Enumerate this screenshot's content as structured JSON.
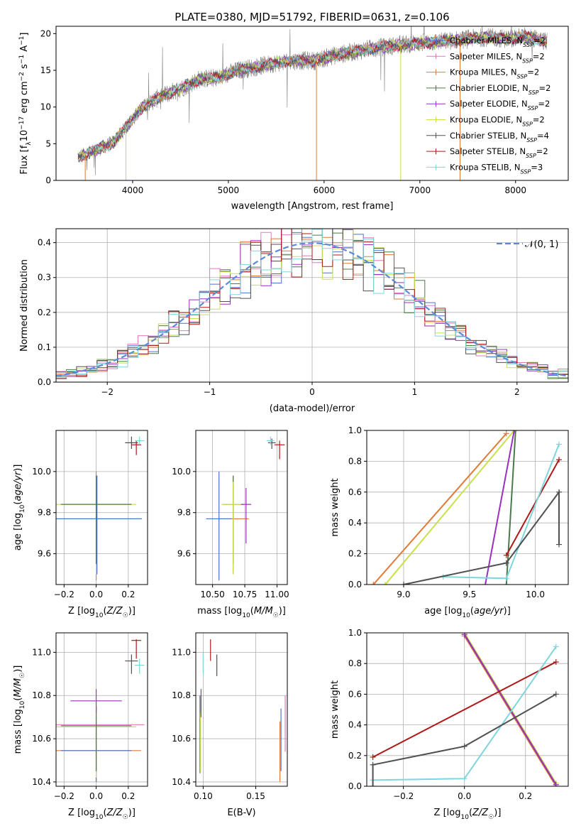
{
  "figure": {
    "title": "PLATE=0380, MJD=51792, FIBERID=0631, z=0.106"
  },
  "legend": {
    "entries": [
      {
        "label": "Chabrier MILES, N",
        "sub": "SSP",
        "suffix": "=2",
        "color": "#4c72d0"
      },
      {
        "label": "Salpeter MILES, N",
        "sub": "SSP",
        "suffix": "=2",
        "color": "#e377c2"
      },
      {
        "label": "Kroupa MILES, N",
        "sub": "SSP",
        "suffix": "=2",
        "color": "#e07b39"
      },
      {
        "label": "Chabrier ELODIE, N",
        "sub": "SSP",
        "suffix": "=2",
        "color": "#4a7a4a"
      },
      {
        "label": "Salpeter ELODIE, N",
        "sub": "SSP",
        "suffix": "=2",
        "color": "#9b30c0"
      },
      {
        "label": "Kroupa ELODIE, N",
        "sub": "SSP",
        "suffix": "=2",
        "color": "#c8e04a"
      },
      {
        "label": "Chabrier STELIB, N",
        "sub": "SSP",
        "suffix": "=4",
        "color": "#505050"
      },
      {
        "label": "Salpeter STELIB, N",
        "sub": "SSP",
        "suffix": "=2",
        "color": "#b01818"
      },
      {
        "label": "Kroupa STELIB, N",
        "sub": "SSP",
        "suffix": "=3",
        "color": "#7fd6dc"
      }
    ]
  },
  "chart_data": [
    {
      "id": "spectrum",
      "type": "line",
      "xlabel": "wavelength [Angstrom, rest frame]",
      "ylabel": "Flux [f_λ 10^-17 erg cm^-2 s^-1 A^-1]",
      "xlim": [
        3200,
        8550
      ],
      "ylim": [
        0,
        21
      ],
      "xticks": [
        "4000",
        "5000",
        "6000",
        "7000",
        "8000"
      ],
      "yticks": [
        "0",
        "5",
        "10",
        "15",
        "20"
      ],
      "grid": false,
      "data_color": "#808080",
      "continuum": {
        "x": [
          3430,
          3600,
          3800,
          3950,
          4100,
          4300,
          4500,
          4700,
          4900,
          5100,
          5300,
          5500,
          5700,
          5900,
          6100,
          6300,
          6500,
          6700,
          6900,
          7100,
          7300,
          7500,
          7700,
          7900,
          8100,
          8300
        ],
        "y": [
          3.2,
          4.0,
          5.2,
          7.5,
          10.0,
          11.5,
          12.5,
          13.8,
          14.0,
          15.0,
          15.5,
          16.0,
          16.3,
          16.3,
          17.0,
          17.5,
          18.0,
          18.3,
          18.6,
          18.8,
          19.0,
          19.3,
          19.5,
          19.3,
          19.6,
          19.0
        ]
      }
    },
    {
      "id": "residual-histogram",
      "type": "line",
      "xlabel": "(data-model)/error",
      "ylabel": "Normed distribution",
      "xlim": [
        -2.5,
        2.5
      ],
      "ylim": [
        0,
        0.44
      ],
      "xticks": [
        "−2",
        "−1",
        "0",
        "1",
        "2"
      ],
      "yticks": [
        "0.0",
        "0.1",
        "0.2",
        "0.3",
        "0.4"
      ],
      "grid": true,
      "reference": {
        "label": "𝒩(0, 1)",
        "mean": 0,
        "sigma": 1,
        "color": "#5b8bd8"
      },
      "hist_bins": {
        "start": -2.5,
        "width": 0.1
      }
    },
    {
      "id": "age-vs-metallicity",
      "type": "scatter",
      "xlabel": "Z [log10(Z/Z☉)]",
      "ylabel": "age [log10(age/yr)]",
      "xlim": [
        -0.25,
        0.32
      ],
      "ylim": [
        9.45,
        10.2
      ],
      "xticks": [
        "−0.2",
        "0.0",
        "0.2"
      ],
      "yticks": [
        "9.6",
        "9.8",
        "10.0"
      ],
      "grid": true,
      "points": [
        {
          "x": 0.0,
          "y": 9.77,
          "xerr": 0.28,
          "ylo": 9.47,
          "yhi": 10.0,
          "color": "#e07b39"
        },
        {
          "x": 0.0,
          "y": 9.84,
          "xerr": 0.25,
          "ylo": 9.5,
          "yhi": 9.95,
          "color": "#c8e04a"
        },
        {
          "x": 0.005,
          "y": 9.77,
          "xerr": 0.28,
          "ylo": 9.5,
          "yhi": 9.98,
          "color": "#4c72d0"
        },
        {
          "x": 0.0,
          "y": 9.84,
          "xerr": 0.22,
          "ylo": 9.55,
          "yhi": 9.98,
          "color": "#4a7a4a"
        },
        {
          "x": 0.22,
          "y": 10.14,
          "xerr": 0.04,
          "ylo": 10.11,
          "yhi": 10.17,
          "color": "#505050"
        },
        {
          "x": 0.25,
          "y": 10.13,
          "xerr": 0.03,
          "ylo": 10.08,
          "yhi": 10.15,
          "color": "#b01818"
        },
        {
          "x": 0.27,
          "y": 10.15,
          "xerr": 0.03,
          "ylo": 10.13,
          "yhi": 10.17,
          "color": "#7fd6dc"
        }
      ]
    },
    {
      "id": "age-vs-mass",
      "type": "scatter",
      "xlabel": "mass [log10(M/M☉)]",
      "ylabel": "",
      "xlim": [
        10.37,
        11.08
      ],
      "ylim": [
        9.45,
        10.2
      ],
      "xticks": [
        "10.50",
        "10.75",
        "11.00"
      ],
      "yticks": [
        "9.6",
        "9.8",
        "10.0"
      ],
      "grid": true,
      "points": [
        {
          "x": 10.66,
          "y": 9.77,
          "xerr": 0.12,
          "ylo": 9.5,
          "yhi": 9.98,
          "color": "#e07b39"
        },
        {
          "x": 10.55,
          "y": 9.77,
          "xerr": 0.1,
          "ylo": 9.47,
          "yhi": 10.0,
          "color": "#4c72d0"
        },
        {
          "x": 10.66,
          "y": 9.84,
          "xerr": 0.08,
          "ylo": 9.55,
          "yhi": 9.98,
          "color": "#4a7a4a"
        },
        {
          "x": 10.66,
          "y": 9.84,
          "xerr": 0.09,
          "ylo": 9.5,
          "yhi": 9.95,
          "color": "#c8e04a"
        },
        {
          "x": 10.76,
          "y": 9.84,
          "xerr": 0.04,
          "ylo": 9.65,
          "yhi": 9.92,
          "color": "#9b30c0"
        },
        {
          "x": 10.96,
          "y": 10.14,
          "xerr": 0.03,
          "ylo": 10.11,
          "yhi": 10.16,
          "color": "#505050"
        },
        {
          "x": 11.02,
          "y": 10.13,
          "xerr": 0.04,
          "ylo": 10.06,
          "yhi": 10.15,
          "color": "#b01818"
        },
        {
          "x": 10.95,
          "y": 10.15,
          "xerr": 0.03,
          "ylo": 10.13,
          "yhi": 10.17,
          "color": "#7fd6dc"
        }
      ]
    },
    {
      "id": "mass-weight-vs-age",
      "type": "line",
      "xlabel": "age [log10(age/yr)]",
      "ylabel": "mass weight",
      "xlim": [
        8.72,
        10.25
      ],
      "ylim": [
        0,
        1
      ],
      "xticks": [
        "9.0",
        "9.5",
        "10.0"
      ],
      "yticks": [
        "0.0",
        "0.2",
        "0.4",
        "0.6",
        "0.8",
        "1.0"
      ],
      "grid": true,
      "series": [
        {
          "color": "#e07b39",
          "x": [
            8.77,
            9.78
          ],
          "y": [
            0.0,
            0.98
          ]
        },
        {
          "color": "#c8e04a",
          "x": [
            8.86,
            9.84
          ],
          "y": [
            0.0,
            1.0
          ]
        },
        {
          "color": "#4a7a4a",
          "x": [
            9.78,
            9.85
          ],
          "y": [
            0.0,
            1.0
          ]
        },
        {
          "color": "#9b30c0",
          "x": [
            9.62,
            9.84
          ],
          "y": [
            0.0,
            1.0
          ]
        },
        {
          "color": "#b01818",
          "x": [
            9.78,
            10.18
          ],
          "y": [
            0.19,
            0.81
          ]
        },
        {
          "color": "#7fd6dc",
          "x": [
            9.3,
            9.78,
            10.18
          ],
          "y": [
            0.05,
            0.04,
            0.91
          ]
        },
        {
          "color": "#505050",
          "x": [
            9.0,
            9.78,
            10.18,
            10.18
          ],
          "y": [
            0.0,
            0.14,
            0.6,
            0.26
          ]
        }
      ]
    },
    {
      "id": "mass-vs-metallicity",
      "type": "scatter",
      "xlabel": "Z [log10(Z/Z☉)]",
      "ylabel": "mass [log10(M/M☉)]",
      "xlim": [
        -0.25,
        0.32
      ],
      "ylim": [
        10.38,
        11.09
      ],
      "xticks": [
        "−0.2",
        "0.0",
        "0.2"
      ],
      "yticks": [
        "10.4",
        "10.6",
        "10.8",
        "11.0"
      ],
      "grid": true,
      "points": [
        {
          "x": 0.0,
          "y": 10.545,
          "xerr": 0.28,
          "ylo": 10.4,
          "yhi": 10.65,
          "color": "#e07b39"
        },
        {
          "x": 0.0,
          "y": 10.545,
          "xerr": 0.22,
          "ylo": 10.4,
          "yhi": 10.7,
          "color": "#4c72d0"
        },
        {
          "x": 0.0,
          "y": 10.665,
          "xerr": 0.3,
          "ylo": 10.45,
          "yhi": 10.75,
          "color": "#e377c2"
        },
        {
          "x": 0.0,
          "y": 10.655,
          "xerr": 0.25,
          "ylo": 10.42,
          "yhi": 10.75,
          "color": "#c8e04a"
        },
        {
          "x": 0.0,
          "y": 10.66,
          "xerr": 0.22,
          "ylo": 10.45,
          "yhi": 10.75,
          "color": "#4a7a4a"
        },
        {
          "x": 0.0,
          "y": 10.775,
          "xerr": 0.16,
          "ylo": 10.72,
          "yhi": 10.83,
          "color": "#9b30c0"
        },
        {
          "x": 0.22,
          "y": 10.96,
          "xerr": 0.04,
          "ylo": 10.9,
          "yhi": 10.99,
          "color": "#505050"
        },
        {
          "x": 0.25,
          "y": 11.055,
          "xerr": 0.03,
          "ylo": 10.97,
          "yhi": 11.06,
          "color": "#b01818"
        },
        {
          "x": 0.27,
          "y": 10.94,
          "xerr": 0.03,
          "ylo": 10.9,
          "yhi": 10.97,
          "color": "#7fd6dc"
        }
      ]
    },
    {
      "id": "mass-vs-reddening",
      "type": "scatter",
      "xlabel": "E(B-V)",
      "ylabel": "",
      "xlim": [
        0.093,
        0.18
      ],
      "ylim": [
        10.38,
        11.09
      ],
      "xticks": [
        "0.10",
        "0.15"
      ],
      "yticks": [
        "10.4",
        "10.6",
        "10.8",
        "11.0"
      ],
      "grid": true,
      "points": [
        {
          "x": 0.097,
          "y": 10.66,
          "ylo": 10.44,
          "yhi": 10.8,
          "color": "#4a7a4a"
        },
        {
          "x": 0.0975,
          "y": 10.65,
          "ylo": 10.45,
          "yhi": 10.72,
          "color": "#c8e04a"
        },
        {
          "x": 0.098,
          "y": 10.77,
          "ylo": 10.7,
          "yhi": 10.83,
          "color": "#9b30c0"
        },
        {
          "x": 0.1,
          "y": 10.95,
          "ylo": 10.9,
          "yhi": 11.0,
          "color": "#7fd6dc"
        },
        {
          "x": 0.107,
          "y": 11.01,
          "ylo": 10.96,
          "yhi": 11.06,
          "color": "#b01818"
        },
        {
          "x": 0.113,
          "y": 10.94,
          "ylo": 10.89,
          "yhi": 10.99,
          "color": "#505050"
        },
        {
          "x": 0.173,
          "y": 10.55,
          "ylo": 10.4,
          "yhi": 10.68,
          "color": "#e07b39"
        },
        {
          "x": 0.174,
          "y": 10.6,
          "ylo": 10.45,
          "yhi": 10.74,
          "color": "#4c72d0"
        },
        {
          "x": 0.178,
          "y": 10.67,
          "ylo": 10.54,
          "yhi": 10.8,
          "color": "#e377c2"
        }
      ]
    },
    {
      "id": "mass-weight-vs-metallicity",
      "type": "line",
      "xlabel": "Z [log10(Z/Z☉)]",
      "ylabel": "mass weight",
      "xlim": [
        -0.32,
        0.34
      ],
      "ylim": [
        0,
        1
      ],
      "xticks": [
        "−0.2",
        "0.0",
        "0.2"
      ],
      "yticks": [
        "0.0",
        "0.2",
        "0.4",
        "0.6",
        "0.8",
        "1.0"
      ],
      "grid": true,
      "series": [
        {
          "color": "#e07b39",
          "x": [
            0.0,
            0.3
          ],
          "y": [
            0.98,
            0.0
          ]
        },
        {
          "color": "#c8e04a",
          "x": [
            0.0,
            0.3
          ],
          "y": [
            1.0,
            0.02
          ]
        },
        {
          "color": "#4a7a4a",
          "x": [
            0.0,
            0.3
          ],
          "y": [
            0.99,
            0.01
          ]
        },
        {
          "color": "#9b30c0",
          "x": [
            0.0,
            0.3
          ],
          "y": [
            0.99,
            0.01
          ]
        },
        {
          "color": "#b01818",
          "x": [
            -0.3,
            0.3
          ],
          "y": [
            0.19,
            0.81
          ]
        },
        {
          "color": "#7fd6dc",
          "x": [
            -0.3,
            0.0,
            0.3
          ],
          "y": [
            0.04,
            0.05,
            0.91
          ]
        },
        {
          "color": "#505050",
          "x": [
            -0.3,
            -0.3,
            0.0,
            0.3
          ],
          "y": [
            0.0,
            0.14,
            0.26,
            0.6
          ]
        }
      ]
    }
  ]
}
